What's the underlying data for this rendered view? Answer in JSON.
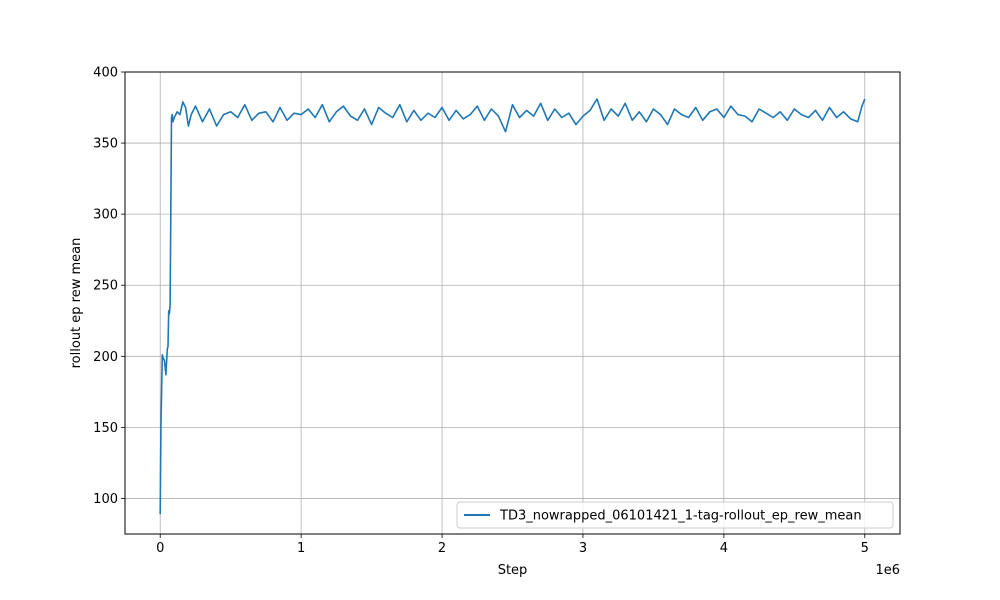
{
  "chart_data": {
    "type": "line",
    "xlabel": "Step",
    "ylabel": "rollout ep rew mean",
    "x_offset_label": "1e6",
    "xlim": [
      -0.25,
      5.25
    ],
    "ylim": [
      75,
      400
    ],
    "x_ticks": [
      0,
      1,
      2,
      3,
      4,
      5
    ],
    "y_ticks": [
      100,
      150,
      200,
      250,
      300,
      350,
      400
    ],
    "grid": true,
    "legend_position": "lower right",
    "colors": {
      "series": "#1f77b4",
      "grid": "#b0b0b0",
      "axes": "#000000"
    },
    "series": [
      {
        "name": "TD3_nowrapped_06101421_1-tag-rollout_ep_rew_mean",
        "x": [
          0.0,
          0.005,
          0.01,
          0.015,
          0.02,
          0.03,
          0.04,
          0.05,
          0.055,
          0.06,
          0.065,
          0.07,
          0.075,
          0.08,
          0.085,
          0.09,
          0.1,
          0.12,
          0.14,
          0.16,
          0.18,
          0.2,
          0.22,
          0.25,
          0.3,
          0.35,
          0.4,
          0.45,
          0.5,
          0.55,
          0.6,
          0.65,
          0.7,
          0.75,
          0.8,
          0.85,
          0.9,
          0.95,
          1.0,
          1.05,
          1.1,
          1.15,
          1.2,
          1.25,
          1.3,
          1.35,
          1.4,
          1.45,
          1.5,
          1.55,
          1.6,
          1.65,
          1.7,
          1.75,
          1.8,
          1.85,
          1.9,
          1.95,
          2.0,
          2.05,
          2.1,
          2.15,
          2.2,
          2.25,
          2.3,
          2.35,
          2.4,
          2.45,
          2.5,
          2.55,
          2.6,
          2.65,
          2.7,
          2.75,
          2.8,
          2.85,
          2.9,
          2.95,
          3.0,
          3.05,
          3.1,
          3.15,
          3.2,
          3.25,
          3.3,
          3.35,
          3.4,
          3.45,
          3.5,
          3.55,
          3.6,
          3.65,
          3.7,
          3.75,
          3.8,
          3.85,
          3.9,
          3.95,
          4.0,
          4.05,
          4.1,
          4.15,
          4.2,
          4.25,
          4.3,
          4.35,
          4.4,
          4.45,
          4.5,
          4.55,
          4.6,
          4.65,
          4.7,
          4.75,
          4.8,
          4.85,
          4.9,
          4.95,
          4.98,
          5.0
        ],
        "y": [
          89,
          150,
          175,
          201,
          199,
          197,
          187,
          205,
          207,
          232,
          230,
          236,
          300,
          368,
          370,
          365,
          368,
          372,
          370,
          379,
          375,
          362,
          370,
          376,
          365,
          374,
          362,
          370,
          372,
          368,
          377,
          366,
          371,
          372,
          365,
          375,
          366,
          371,
          370,
          374,
          368,
          377,
          365,
          372,
          376,
          369,
          366,
          374,
          363,
          375,
          371,
          368,
          377,
          365,
          373,
          366,
          371,
          368,
          375,
          366,
          373,
          367,
          370,
          376,
          366,
          374,
          369,
          358,
          377,
          368,
          373,
          369,
          378,
          366,
          374,
          368,
          371,
          363,
          369,
          373,
          381,
          366,
          374,
          369,
          378,
          366,
          372,
          365,
          374,
          370,
          363,
          374,
          370,
          368,
          375,
          366,
          372,
          374,
          368,
          376,
          370,
          369,
          365,
          374,
          371,
          368,
          372,
          366,
          374,
          370,
          368,
          373,
          366,
          375,
          368,
          372,
          367,
          365,
          376,
          381
        ]
      }
    ]
  }
}
